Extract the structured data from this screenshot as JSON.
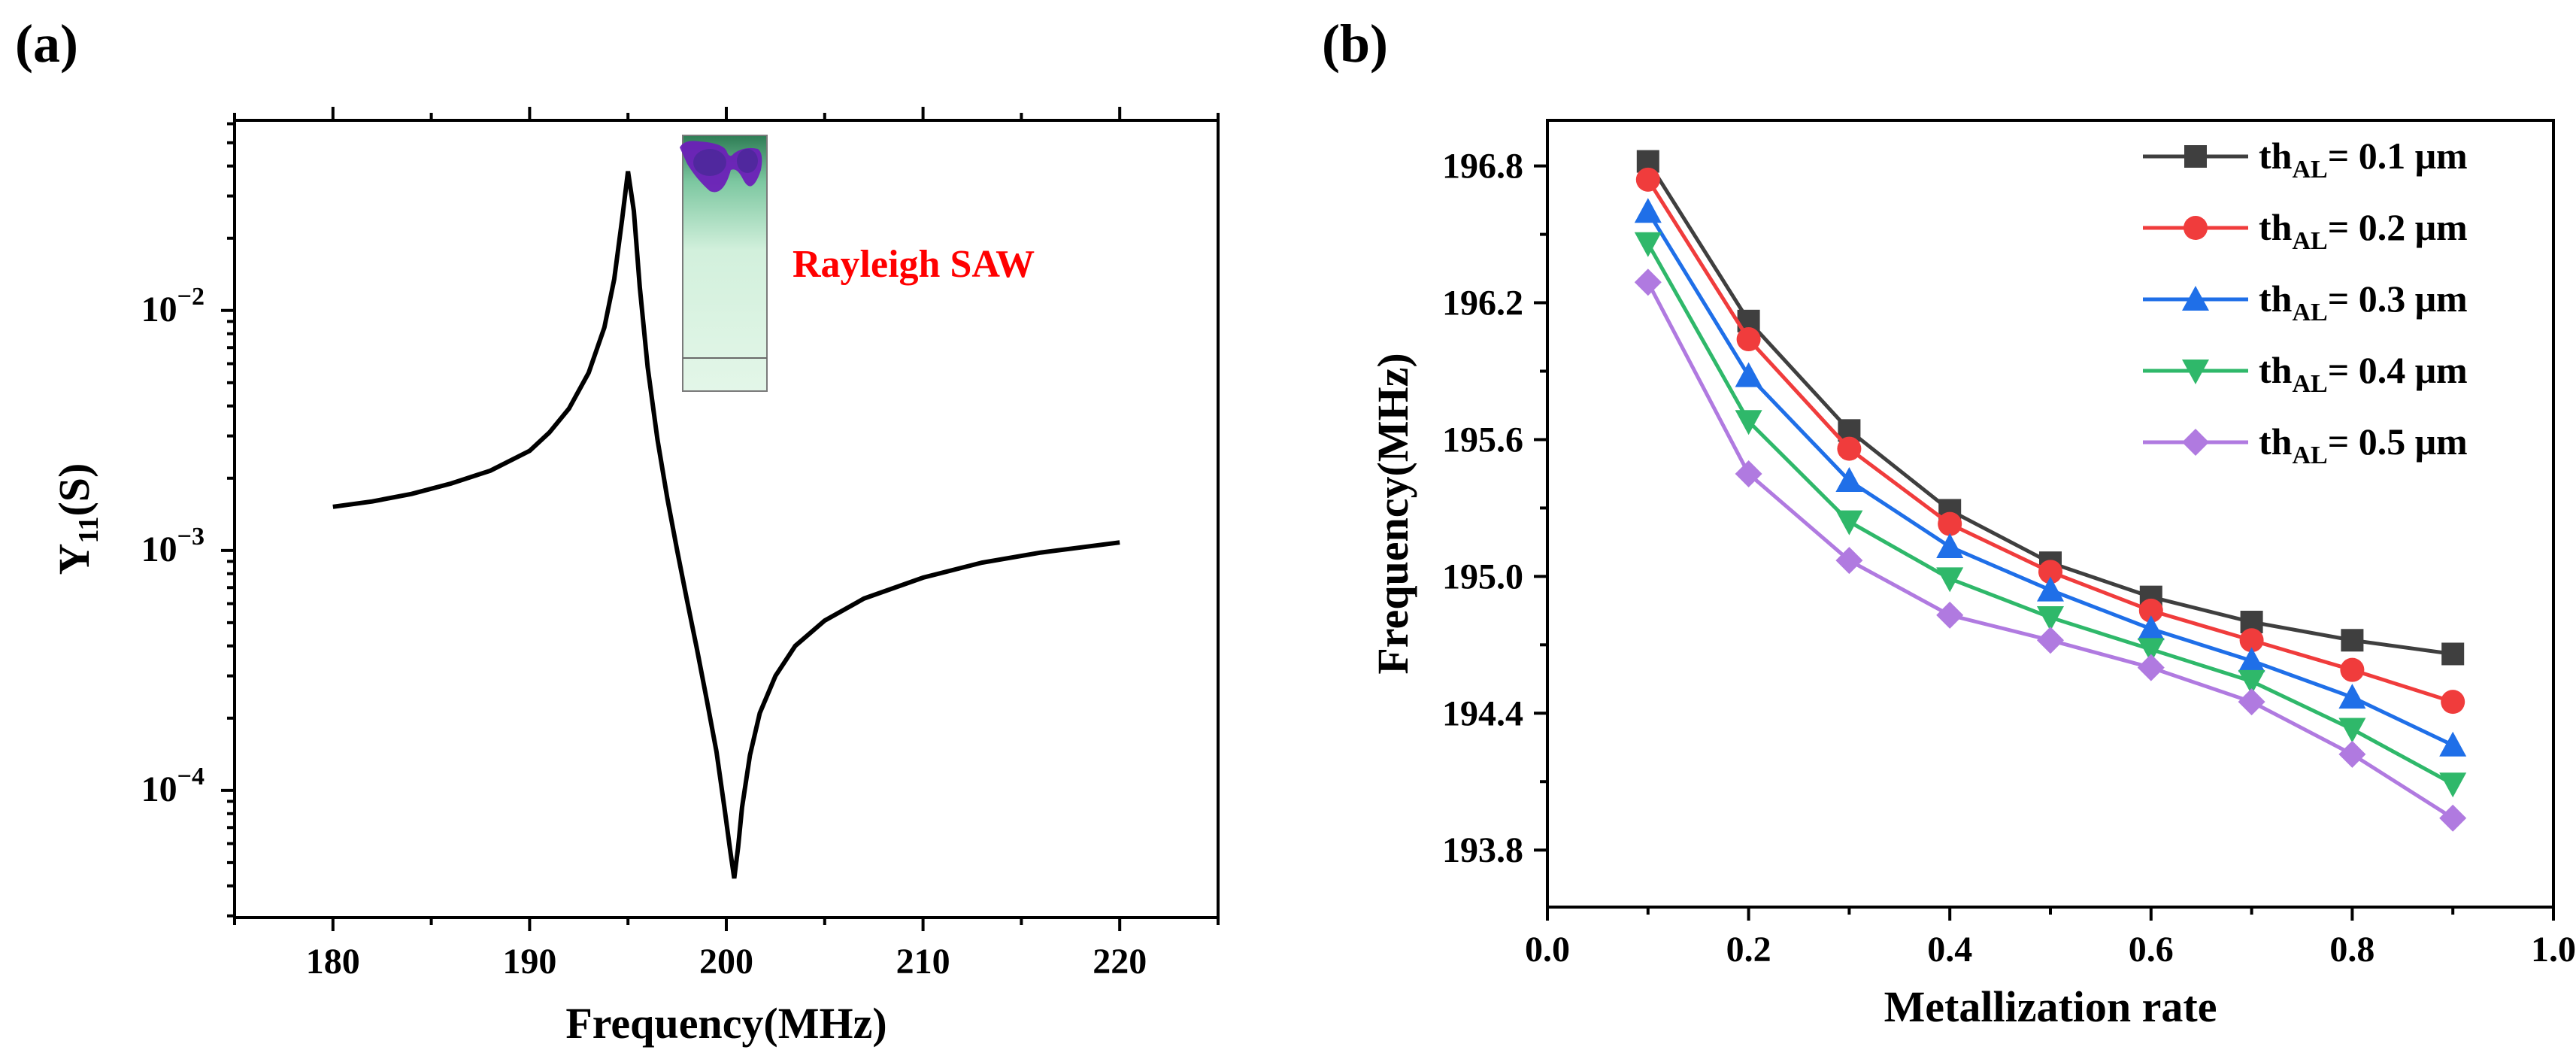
{
  "panels": {
    "a": "(a)",
    "b": "(b)"
  },
  "chart_data": [
    {
      "panel": "(a)",
      "type": "line",
      "title": "",
      "xlabel": "Frequency(MHz)",
      "ylabel_main": "Y",
      "ylabel_sub": "11",
      "ylabel_tail": "(S)",
      "xlim": [
        175,
        225
      ],
      "xticks": [
        180,
        190,
        200,
        210,
        220
      ],
      "yscale": "log",
      "ylim": [
        2.95e-05,
        0.062
      ],
      "yticks": [
        {
          "value": 0.0001,
          "base": "10",
          "exp": "−4"
        },
        {
          "value": 0.001,
          "base": "10",
          "exp": "−3"
        },
        {
          "value": 0.01,
          "base": "10",
          "exp": "−2"
        }
      ],
      "series": [
        {
          "name": "Y11",
          "color": "#000000",
          "x": [
            180,
            182,
            184,
            186,
            188,
            190,
            191,
            192,
            193,
            193.8,
            194.3,
            194.7,
            195.0,
            195.3,
            195.6,
            196.0,
            196.5,
            197.0,
            197.5,
            198.0,
            198.5,
            199.0,
            199.5,
            199.9,
            200.2,
            200.4,
            200.6,
            200.8,
            201.2,
            201.7,
            202.5,
            203.5,
            205,
            207,
            210,
            213,
            216,
            220
          ],
          "y": [
            0.00152,
            0.0016,
            0.00172,
            0.0019,
            0.00215,
            0.0026,
            0.0031,
            0.0039,
            0.0055,
            0.0085,
            0.0135,
            0.024,
            0.038,
            0.026,
            0.0125,
            0.0058,
            0.0029,
            0.00165,
            0.001,
            0.00062,
            0.00039,
            0.00024,
            0.000145,
            8.5e-05,
            5.6e-05,
            4.3e-05,
            5.8e-05,
            8.5e-05,
            0.00014,
            0.00021,
            0.0003,
            0.0004,
            0.00051,
            0.00063,
            0.00077,
            0.00089,
            0.00098,
            0.00108
          ]
        }
      ],
      "annotation": "Rayleigh SAW",
      "annotation_color": "#ff0000"
    },
    {
      "panel": "(b)",
      "type": "line",
      "title": "",
      "xlabel": "Metallization rate",
      "ylabel": "Frequency(MHz)",
      "xlim": [
        0.0,
        1.0
      ],
      "xticks": [
        "0.0",
        "0.2",
        "0.4",
        "0.6",
        "0.8",
        "1.0"
      ],
      "ylim": [
        193.55,
        197.0
      ],
      "yticks": [
        "193.8",
        "194.4",
        "195.0",
        "195.6",
        "196.2",
        "196.8"
      ],
      "x": [
        0.1,
        0.2,
        0.3,
        0.4,
        0.5,
        0.6,
        0.7,
        0.8,
        0.9
      ],
      "legend_position": "top-right",
      "series": [
        {
          "name_main": "th",
          "name_sub": "AL",
          "name_tail": "= 0.1 μm",
          "marker": "square",
          "color": "#3f3f3f",
          "values": [
            196.82,
            196.12,
            195.64,
            195.29,
            195.06,
            194.91,
            194.8,
            194.72,
            194.66
          ]
        },
        {
          "name_main": "th",
          "name_sub": "AL",
          "name_tail": "= 0.2 μm",
          "marker": "circle",
          "color": "#f03c3c",
          "values": [
            196.74,
            196.04,
            195.56,
            195.23,
            195.02,
            194.85,
            194.72,
            194.59,
            194.45
          ]
        },
        {
          "name_main": "th",
          "name_sub": "AL",
          "name_tail": "= 0.3 μm",
          "marker": "triangle-up",
          "color": "#1f6fe8",
          "values": [
            196.6,
            195.88,
            195.42,
            195.13,
            194.94,
            194.77,
            194.63,
            194.47,
            194.26
          ]
        },
        {
          "name_main": "th",
          "name_sub": "AL",
          "name_tail": "= 0.4 μm",
          "marker": "triangle-down",
          "color": "#2fb86a",
          "values": [
            196.46,
            195.68,
            195.24,
            194.99,
            194.82,
            194.68,
            194.54,
            194.33,
            194.09
          ]
        },
        {
          "name_main": "th",
          "name_sub": "AL",
          "name_tail": "= 0.5 μm",
          "marker": "diamond",
          "color": "#b07ae0",
          "values": [
            196.29,
            195.45,
            195.07,
            194.83,
            194.72,
            194.6,
            194.45,
            194.22,
            193.94
          ]
        }
      ]
    }
  ]
}
